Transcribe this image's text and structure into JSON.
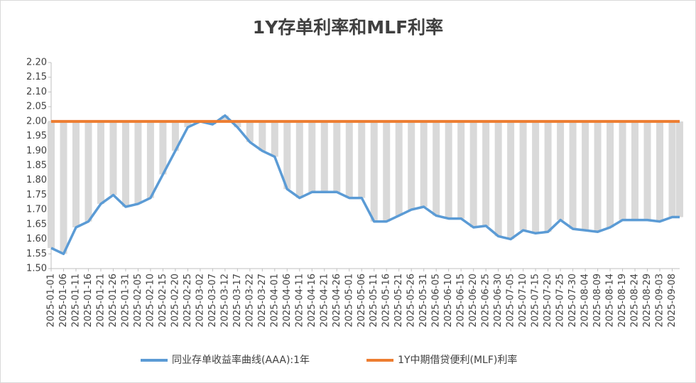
{
  "chart_data": {
    "type": "line",
    "title": "1Y存单利率和MLF利率",
    "x": [
      "2025-01-01",
      "2025-01-06",
      "2025-01-11",
      "2025-01-16",
      "2025-01-21",
      "2025-01-26",
      "2025-01-31",
      "2025-02-05",
      "2025-02-10",
      "2025-02-15",
      "2025-02-20",
      "2025-02-25",
      "2025-03-02",
      "2025-03-07",
      "2025-03-12",
      "2025-03-17",
      "2025-03-22",
      "2025-03-27",
      "2025-04-01",
      "2025-04-06",
      "2025-04-11",
      "2025-04-16",
      "2025-04-21",
      "2025-04-26",
      "2025-05-01",
      "2025-05-06",
      "2025-05-11",
      "2025-05-16",
      "2025-05-21",
      "2025-05-26",
      "2025-05-31",
      "2025-06-05",
      "2025-06-10",
      "2025-06-15",
      "2025-06-20",
      "2025-06-25",
      "2025-06-30",
      "2025-07-05",
      "2025-07-10",
      "2025-07-15",
      "2025-07-20",
      "2025-07-25",
      "2025-07-30",
      "2025-08-04",
      "2025-08-09",
      "2025-08-14",
      "2025-08-19",
      "2025-08-24",
      "2025-08-29",
      "2025-09-03",
      "2025-09-08",
      "2025-09-11"
    ],
    "series": [
      {
        "name": "同业存单收益率曲线(AAA):1年",
        "color": "#5b9bd5",
        "values": [
          1.57,
          1.55,
          1.64,
          1.66,
          1.72,
          1.75,
          1.71,
          1.72,
          1.74,
          1.82,
          1.9,
          1.98,
          2.0,
          1.99,
          2.02,
          1.98,
          1.93,
          1.9,
          1.88,
          1.77,
          1.74,
          1.76,
          1.76,
          1.76,
          1.74,
          1.74,
          1.66,
          1.66,
          1.68,
          1.7,
          1.71,
          1.68,
          1.67,
          1.67,
          1.64,
          1.645,
          1.61,
          1.6,
          1.63,
          1.62,
          1.625,
          1.665,
          1.635,
          1.63,
          1.625,
          1.64,
          1.665,
          1.665,
          1.665,
          1.66,
          1.675,
          1.675
        ]
      },
      {
        "name": "1Y中期借贷便利(MLF)利率",
        "color": "#ed7d31",
        "values": [
          2,
          2,
          2,
          2,
          2,
          2,
          2,
          2,
          2,
          2,
          2,
          2,
          2,
          2,
          2,
          2,
          2,
          2,
          2,
          2,
          2,
          2,
          2,
          2,
          2,
          2,
          2,
          2,
          2,
          2,
          2,
          2,
          2,
          2,
          2,
          2,
          2,
          2,
          2,
          2,
          2,
          2,
          2,
          2,
          2,
          2,
          2,
          2,
          2,
          2,
          2,
          2
        ]
      }
    ],
    "high_low_color": "#d9d9d9",
    "xlim": [
      "2025-01-01",
      "2025-09-11"
    ],
    "xticks": [
      "2025-01-01",
      "2025-01-06",
      "2025-01-11",
      "2025-01-16",
      "2025-01-21",
      "2025-01-26",
      "2025-01-31",
      "2025-02-05",
      "2025-02-10",
      "2025-02-15",
      "2025-02-20",
      "2025-02-25",
      "2025-03-02",
      "2025-03-07",
      "2025-03-12",
      "2025-03-17",
      "2025-03-22",
      "2025-03-27",
      "2025-04-01",
      "2025-04-06",
      "2025-04-11",
      "2025-04-16",
      "2025-04-21",
      "2025-04-26",
      "2025-05-01",
      "2025-05-06",
      "2025-05-11",
      "2025-05-16",
      "2025-05-21",
      "2025-05-26",
      "2025-05-31",
      "2025-06-05",
      "2025-06-10",
      "2025-06-15",
      "2025-06-20",
      "2025-06-25",
      "2025-06-30",
      "2025-07-05",
      "2025-07-10",
      "2025-07-15",
      "2025-07-20",
      "2025-07-25",
      "2025-07-30",
      "2025-08-04",
      "2025-08-09",
      "2025-08-14",
      "2025-08-19",
      "2025-08-24",
      "2025-08-29",
      "2025-09-03",
      "2025-09-08"
    ],
    "ylim": [
      1.5,
      2.2
    ],
    "yticks": [
      {
        "value": 1.5,
        "label": "1.50"
      },
      {
        "value": 1.55,
        "label": "1.55"
      },
      {
        "value": 1.6,
        "label": "1.60"
      },
      {
        "value": 1.65,
        "label": "1.65"
      },
      {
        "value": 1.7,
        "label": "1.70"
      },
      {
        "value": 1.75,
        "label": "1.75"
      },
      {
        "value": 1.8,
        "label": "1.80"
      },
      {
        "value": 1.85,
        "label": "1.85"
      },
      {
        "value": 1.9,
        "label": "1.90"
      },
      {
        "value": 1.95,
        "label": "1.95"
      },
      {
        "value": 2.0,
        "label": "2.00"
      },
      {
        "value": 2.05,
        "label": "2.05"
      },
      {
        "value": 2.1,
        "label": "2.10"
      },
      {
        "value": 2.15,
        "label": "2.15"
      },
      {
        "value": 2.2,
        "label": "2.20"
      }
    ],
    "legend": "bottom"
  }
}
